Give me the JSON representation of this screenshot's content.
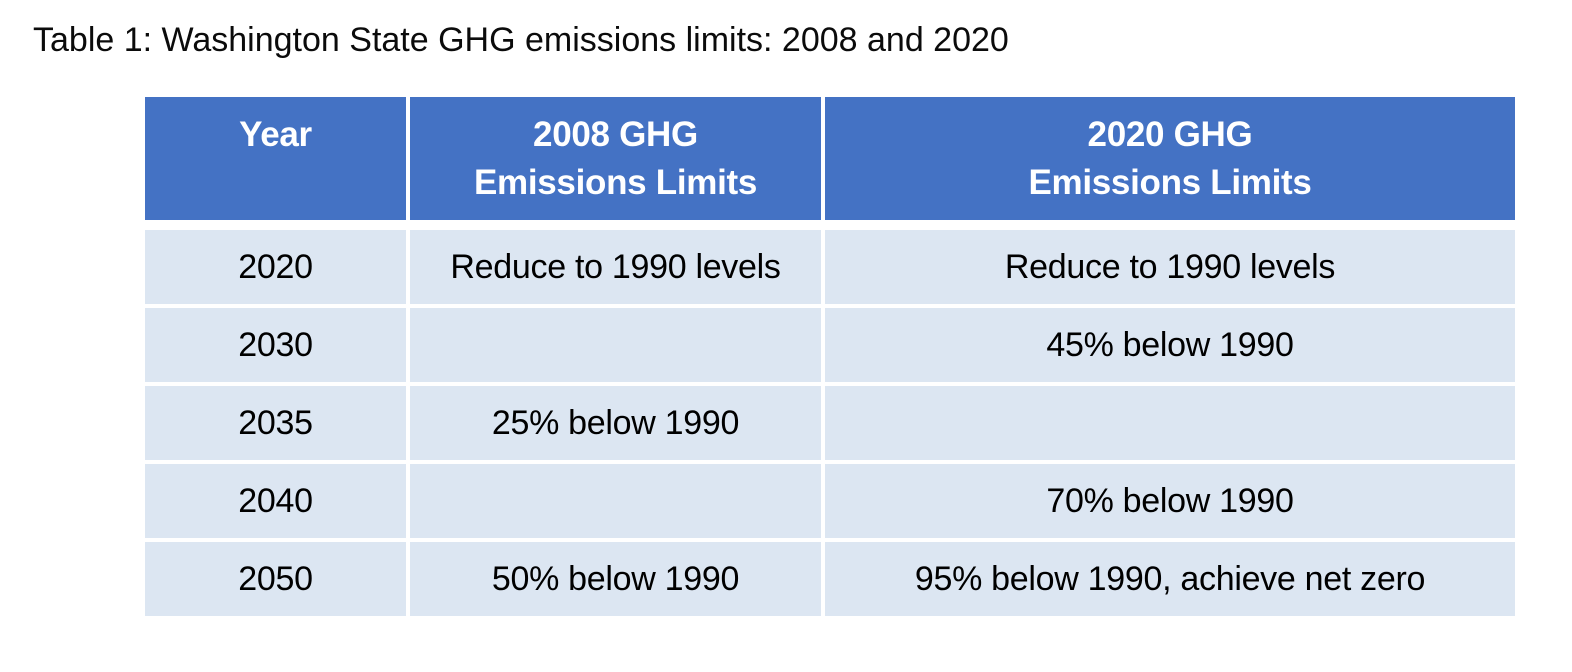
{
  "caption": "Table 1: Washington State GHG emissions limits: 2008 and 2020",
  "colors": {
    "header_bg": "#4472C4",
    "header_text": "#FFFFFF",
    "row_bg": "#DCE6F2",
    "body_text": "#000000",
    "gutter": "#FFFFFF"
  },
  "table": {
    "columns": [
      {
        "key": "year",
        "label": "Year"
      },
      {
        "key": "limit2008",
        "label": "2008 GHG\nEmissions Limits"
      },
      {
        "key": "limit2020",
        "label": "2020 GHG\nEmissions Limits"
      }
    ],
    "rows": [
      {
        "year": "2020",
        "limit2008": "Reduce to 1990 levels",
        "limit2020": "Reduce to 1990 levels"
      },
      {
        "year": "2030",
        "limit2008": "",
        "limit2020": "45% below 1990"
      },
      {
        "year": "2035",
        "limit2008": "25% below 1990",
        "limit2020": ""
      },
      {
        "year": "2040",
        "limit2008": "",
        "limit2020": "70% below 1990"
      },
      {
        "year": "2050",
        "limit2008": "50% below 1990",
        "limit2020": "95% below 1990, achieve net zero"
      }
    ]
  },
  "chart_data": {
    "type": "table",
    "title": "Table 1: Washington State GHG emissions limits: 2008 and 2020",
    "columns": [
      "Year",
      "2008 GHG Emissions Limits",
      "2020 GHG Emissions Limits"
    ],
    "rows": [
      [
        "2020",
        "Reduce to 1990 levels",
        "Reduce to 1990 levels"
      ],
      [
        "2030",
        "",
        "45% below 1990"
      ],
      [
        "2035",
        "25% below 1990",
        ""
      ],
      [
        "2040",
        "",
        "70% below 1990"
      ],
      [
        "2050",
        "50% below 1990",
        "95% below 1990, achieve net zero"
      ]
    ]
  }
}
